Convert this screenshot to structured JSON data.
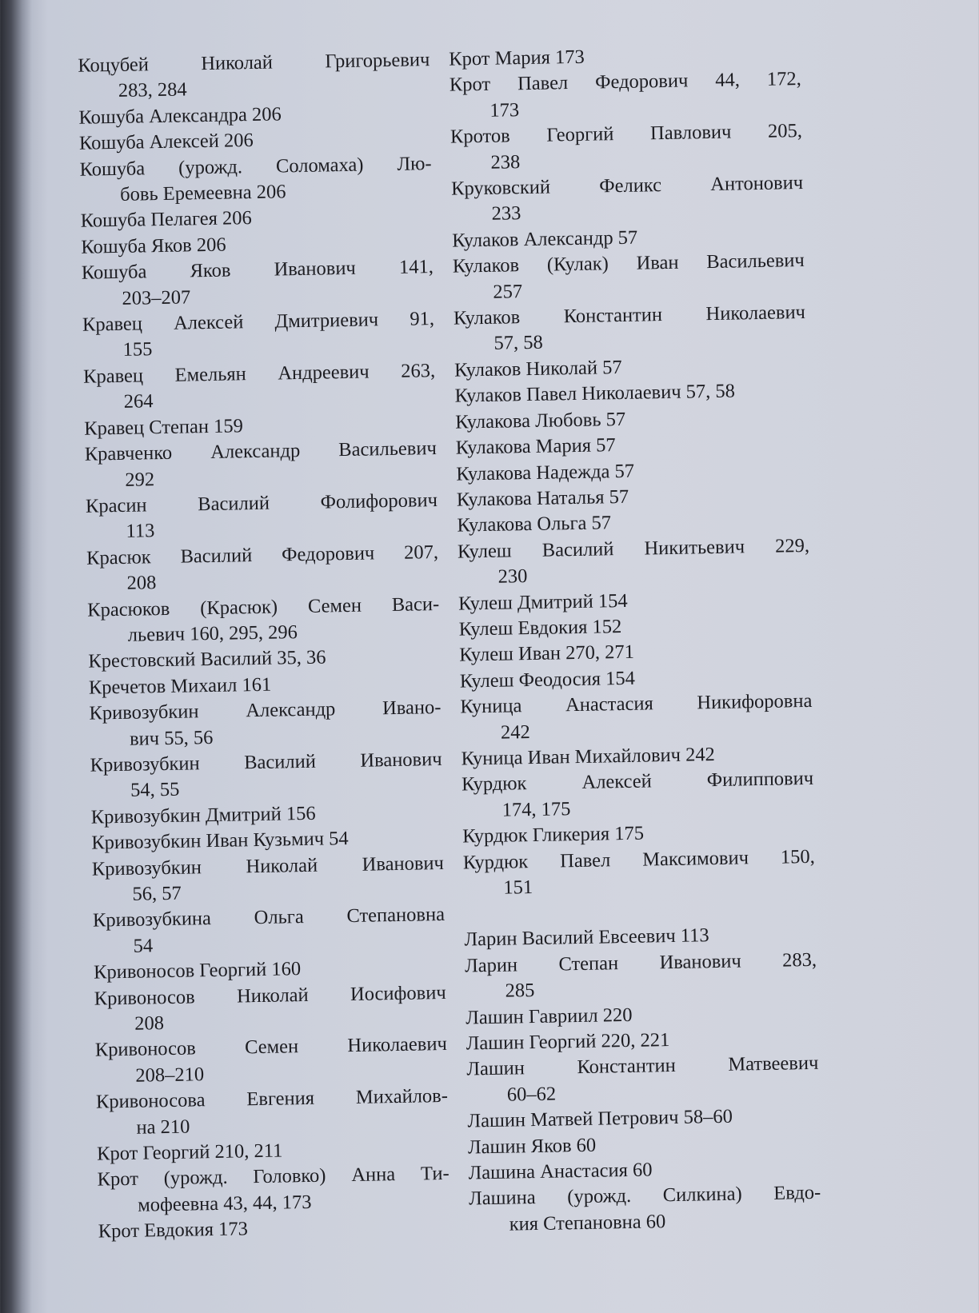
{
  "index": {
    "left_column": [
      {
        "lines": [
          "Коцубей Николай Григорьевич",
          "283, 284"
        ]
      },
      {
        "lines": [
          "Кошуба Александра 206"
        ]
      },
      {
        "lines": [
          "Кошуба Алексей 206"
        ]
      },
      {
        "lines": [
          "Кошуба (урожд. Соломаха) Лю-",
          "бовь Еремеевна 206"
        ]
      },
      {
        "lines": [
          "Кошуба Пелагея 206"
        ]
      },
      {
        "lines": [
          "Кошуба Яков 206"
        ]
      },
      {
        "lines": [
          "Кошуба Яков Иванович 141,",
          "203–207"
        ]
      },
      {
        "lines": [
          "Кравец Алексей Дмитриевич 91,",
          "155"
        ]
      },
      {
        "lines": [
          "Кравец Емельян Андреевич 263,",
          "264"
        ]
      },
      {
        "lines": [
          "Кравец Степан 159"
        ]
      },
      {
        "lines": [
          "Кравченко Александр Васильевич",
          "292"
        ]
      },
      {
        "lines": [
          "Красин Василий Фолифорович",
          "113"
        ]
      },
      {
        "lines": [
          "Красюк Василий Федорович 207,",
          "208"
        ]
      },
      {
        "lines": [
          "Красюков (Красюк) Семен Васи-",
          "льевич 160, 295, 296"
        ]
      },
      {
        "lines": [
          "Крестовский Василий 35, 36"
        ]
      },
      {
        "lines": [
          "Кречетов Михаил 161"
        ]
      },
      {
        "lines": [
          "Кривозубкин Александр Ивано-",
          "вич 55, 56"
        ]
      },
      {
        "lines": [
          "Кривозубкин Василий Иванович",
          "54, 55"
        ]
      },
      {
        "lines": [
          "Кривозубкин Дмитрий 156"
        ]
      },
      {
        "lines": [
          "Кривозубкин Иван Кузьмич 54"
        ]
      },
      {
        "lines": [
          "Кривозубкин Николай Иванович",
          "56, 57"
        ]
      },
      {
        "lines": [
          "Кривозубкина Ольга Степановна",
          "54"
        ]
      },
      {
        "lines": [
          "Кривоносов Георгий 160"
        ]
      },
      {
        "lines": [
          "Кривоносов Николай Иосифович",
          "208"
        ]
      },
      {
        "lines": [
          "Кривоносов Семен Николаевич",
          "208–210"
        ]
      },
      {
        "lines": [
          "Кривоносова Евгения Михайлов-",
          "на 210"
        ]
      },
      {
        "lines": [
          "Крот Георгий 210, 211"
        ]
      },
      {
        "lines": [
          "Крот (урожд. Головко) Анна Ти-",
          "мофеевна 43, 44, 173"
        ]
      },
      {
        "lines": [
          "Крот Евдокия 173"
        ]
      }
    ],
    "right_column": [
      {
        "lines": [
          "Крот Мария 173"
        ]
      },
      {
        "lines": [
          "Крот Павел Федорович 44, 172,",
          "173"
        ]
      },
      {
        "lines": [
          "Кротов Георгий Павлович 205,",
          "238"
        ]
      },
      {
        "lines": [
          "Круковский Феликс Антонович",
          "233"
        ]
      },
      {
        "lines": [
          "Кулаков Александр 57"
        ]
      },
      {
        "lines": [
          "Кулаков (Кулак) Иван Васильевич",
          "257"
        ]
      },
      {
        "lines": [
          "Кулаков Константин Николаевич",
          "57, 58"
        ]
      },
      {
        "lines": [
          "Кулаков Николай 57"
        ]
      },
      {
        "lines": [
          "Кулаков Павел Николаевич 57, 58"
        ]
      },
      {
        "lines": [
          "Кулакова Любовь 57"
        ]
      },
      {
        "lines": [
          "Кулакова Мария 57"
        ]
      },
      {
        "lines": [
          "Кулакова Надежда 57"
        ]
      },
      {
        "lines": [
          "Кулакова Наталья 57"
        ]
      },
      {
        "lines": [
          "Кулакова Ольга 57"
        ]
      },
      {
        "lines": [
          "Кулеш Василий Никитьевич 229,",
          "230"
        ]
      },
      {
        "lines": [
          "Кулеш Дмитрий 154"
        ]
      },
      {
        "lines": [
          "Кулеш Евдокия 152"
        ]
      },
      {
        "lines": [
          "Кулеш Иван 270, 271"
        ]
      },
      {
        "lines": [
          "Кулеш Феодосия 154"
        ]
      },
      {
        "lines": [
          "Куница Анастасия Никифоровна",
          "242"
        ]
      },
      {
        "lines": [
          "Куница Иван Михайлович 242"
        ]
      },
      {
        "lines": [
          "Курдюк Алексей Филиппович",
          "174, 175"
        ]
      },
      {
        "lines": [
          "Курдюк Гликерия 175"
        ]
      },
      {
        "lines": [
          "Курдюк Павел Максимович 150,",
          "151"
        ]
      },
      {
        "lines": [
          "Ларин Василий Евсеевич 113"
        ],
        "section_start": true
      },
      {
        "lines": [
          "Ларин Степан Иванович 283,",
          "285"
        ]
      },
      {
        "lines": [
          "Лашин Гавриил 220"
        ]
      },
      {
        "lines": [
          "Лашин Георгий 220, 221"
        ]
      },
      {
        "lines": [
          "Лашин Константин Матвеевич",
          "60–62"
        ]
      },
      {
        "lines": [
          "Лашин Матвей Петрович 58–60"
        ]
      },
      {
        "lines": [
          "Лашин Яков 60"
        ]
      },
      {
        "lines": [
          "Лашина Анастасия 60"
        ]
      },
      {
        "lines": [
          "Лашина (урожд. Силкина) Евдо-",
          "кия Степановна 60"
        ]
      }
    ]
  }
}
